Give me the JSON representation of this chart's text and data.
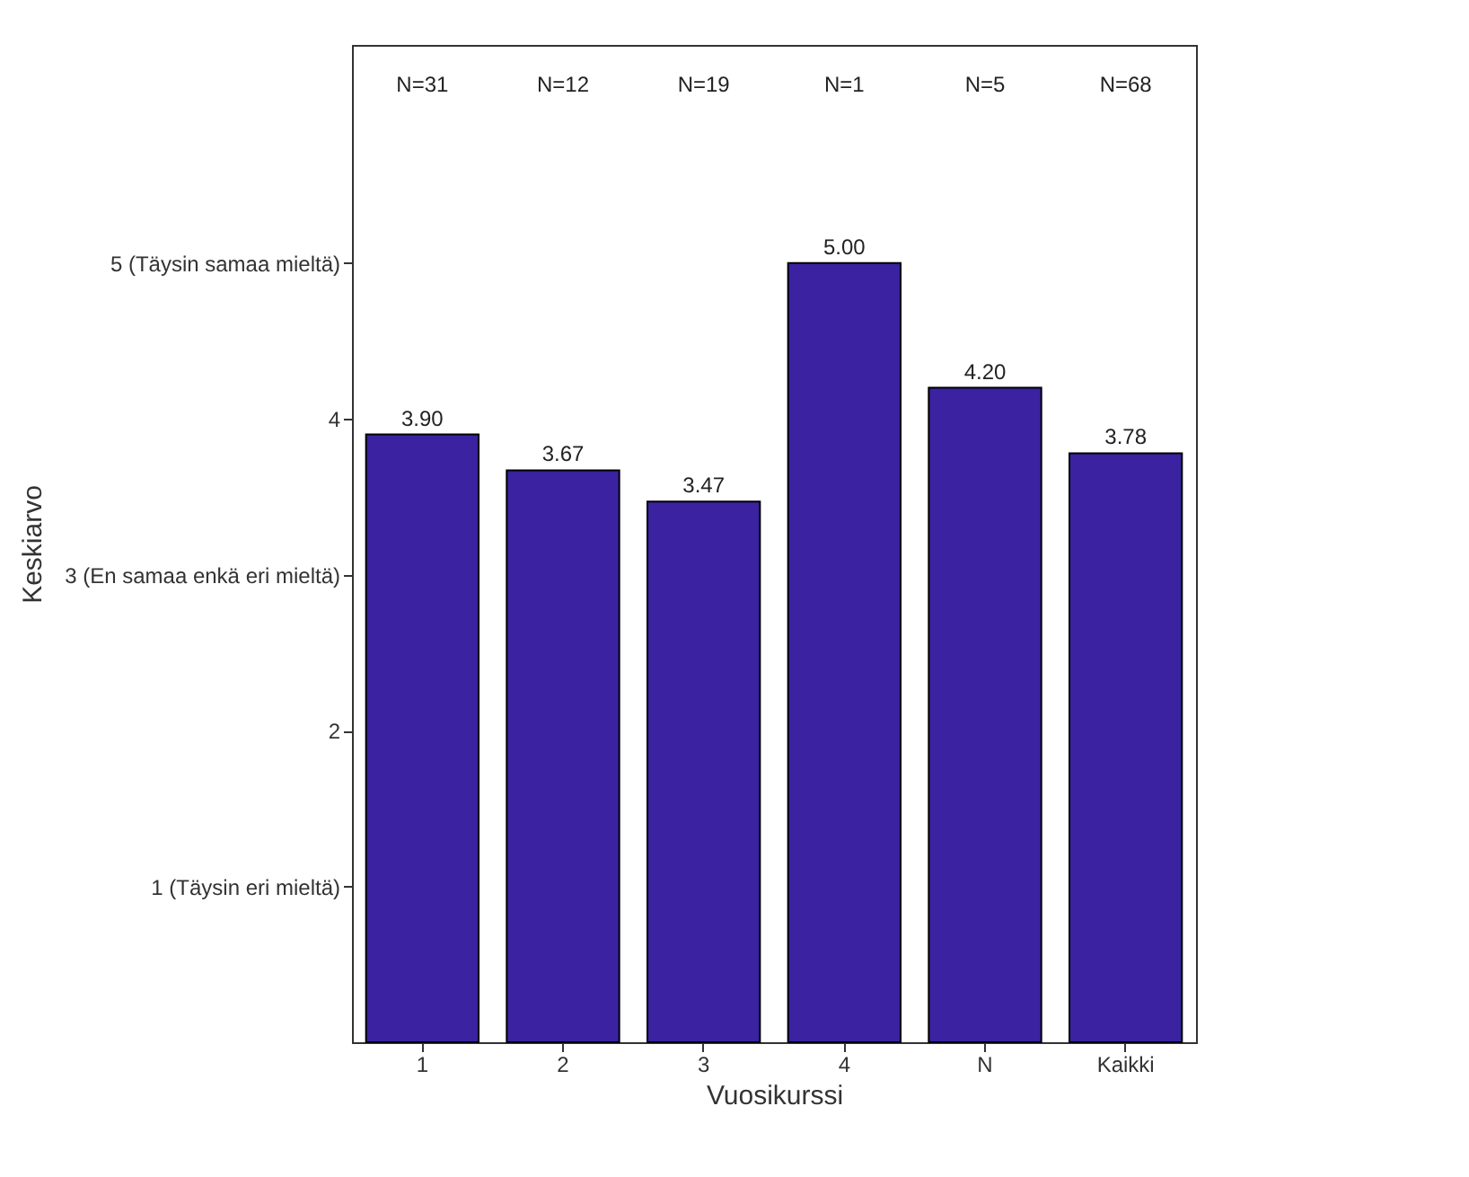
{
  "chart_data": {
    "type": "bar",
    "xlabel": "Vuosikurssi",
    "ylabel": "Keskiarvo",
    "categories": [
      "1",
      "2",
      "3",
      "4",
      "N",
      "Kaikki"
    ],
    "values": [
      3.9,
      3.67,
      3.47,
      5.0,
      4.2,
      3.78
    ],
    "color": "#3a22a0",
    "value_labels": [
      "3.90",
      "3.67",
      "3.47",
      "5.00",
      "4.20",
      "3.78"
    ],
    "ylim": [
      0,
      6.4
    ],
    "yticks": [
      {
        "value": 1,
        "label": "1 (Täysin eri mieltä)"
      },
      {
        "value": 2,
        "label": "2"
      },
      {
        "value": 3,
        "label": "3 (En samaa enkä eri mieltä)"
      },
      {
        "value": 4,
        "label": "4"
      },
      {
        "value": 5,
        "label": "5 (Täysin samaa mieltä)"
      }
    ],
    "annotations": [
      "N=31",
      "N=12",
      "N=19",
      "N=1",
      "N=5",
      "N=68"
    ],
    "grid": false
  }
}
